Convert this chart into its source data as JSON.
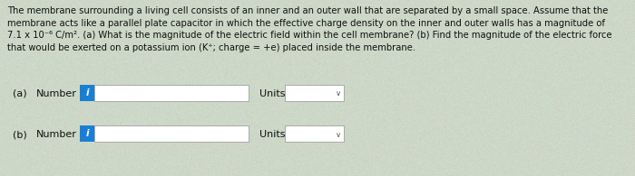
{
  "bg_color": "#cdd8c8",
  "text_color": "#111111",
  "info_color": "#1a7fd4",
  "box_border_color": "#aaaaaa",
  "font_size_para": 7.2,
  "font_size_labels": 8.0,
  "para_line1": "The membrane surrounding a living cell consists of an inner and an outer wall that are separated by a small space. Assume that the",
  "para_line2": "membrane acts like a parallel plate capacitor in which the effective charge density on the inner and outer walls has a magnitude of",
  "para_line3": "7.1 x 10⁻⁶ C/m². (a) What is the magnitude of the electric field within the cell membrane? (b) Find the magnitude of the electric force",
  "para_line4": "that would be exerted on a potassium ion (K⁺; charge = +e) placed inside the membrane.",
  "label_a": "(a)",
  "label_b": "(b)",
  "number_label": "Number",
  "units_label": "Units"
}
